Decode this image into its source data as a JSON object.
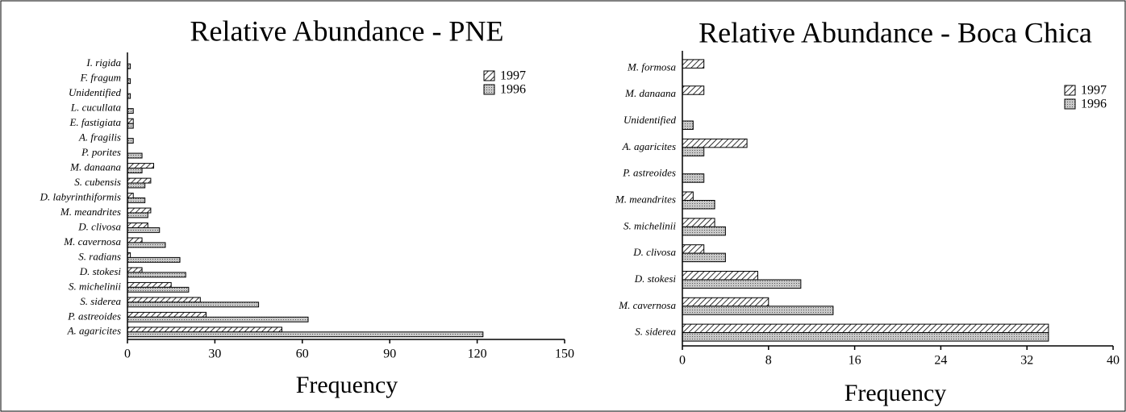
{
  "chart_data": [
    {
      "type": "bar",
      "orientation": "horizontal",
      "title": "Relative Abundance - PNE",
      "xlabel": "Frequency",
      "categories": [
        "I. rigida",
        "F. fragum",
        "Unidentified",
        "L. cucullata",
        "E. fastigiata",
        "A. fragilis",
        "P. porites",
        "M. danaana",
        "S. cubensis",
        "D. labyrinthiformis",
        "M. meandrites",
        "D. clivosa",
        "M. cavernosa",
        "S. radians",
        "D. stokesi",
        "S. michelinii",
        "S. siderea",
        "P. astreoides",
        "A. agaricites"
      ],
      "series": [
        {
          "name": "1997",
          "pattern": "hatch",
          "values": [
            0,
            0,
            0,
            0,
            2,
            0,
            0,
            9,
            8,
            2,
            8,
            7,
            5,
            1,
            5,
            15,
            25,
            27,
            53
          ]
        },
        {
          "name": "1996",
          "pattern": "dots",
          "values": [
            1,
            1,
            1,
            2,
            2,
            2,
            5,
            5,
            6,
            6,
            7,
            11,
            13,
            18,
            20,
            21,
            45,
            62,
            122
          ]
        }
      ],
      "xlim": [
        0,
        150
      ],
      "xticks": [
        0,
        30,
        60,
        90,
        120,
        150
      ],
      "legend": "upper right"
    },
    {
      "type": "bar",
      "orientation": "horizontal",
      "title": "Relative Abundance - Boca Chica",
      "xlabel": "Frequency",
      "categories": [
        "M. formosa",
        "M. danaana",
        "Unidentified",
        "A. agaricites",
        "P. astreoides",
        "M. meandrites",
        "S. michelinii",
        "D. clivosa",
        "D. stokesi",
        "M. cavernosa",
        "S. siderea"
      ],
      "series": [
        {
          "name": "1997",
          "pattern": "hatch",
          "values": [
            2,
            2,
            0,
            6,
            0,
            1,
            3,
            2,
            7,
            8,
            34
          ]
        },
        {
          "name": "1996",
          "pattern": "dots",
          "values": [
            0,
            0,
            1,
            2,
            2,
            3,
            4,
            4,
            11,
            14,
            34
          ]
        }
      ],
      "xlim": [
        0,
        40
      ],
      "xticks": [
        0,
        8,
        16,
        24,
        32,
        40
      ],
      "legend": "upper right"
    }
  ]
}
